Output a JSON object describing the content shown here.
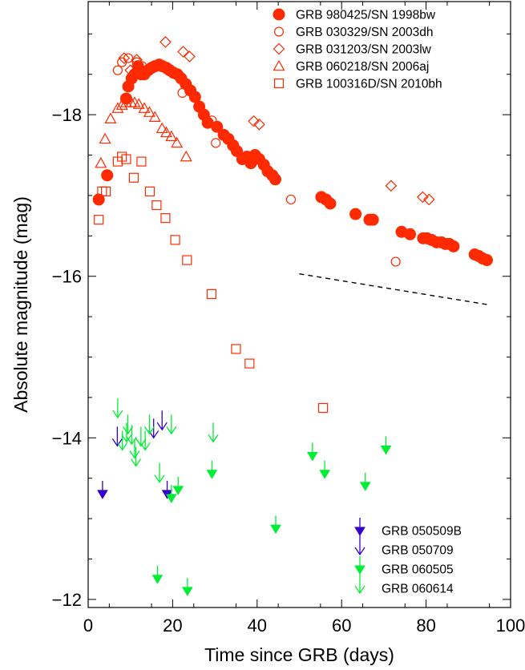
{
  "chart_data": {
    "type": "scatter",
    "xlabel": "Time since GRB (days)",
    "ylabel": "Absolute magnitude (mag)",
    "xlim": [
      0,
      100
    ],
    "ylim": [
      -11.9,
      -19.4
    ],
    "y_reversed": true,
    "x_ticks": [
      0,
      20,
      40,
      60,
      80,
      100
    ],
    "x_tick_labels": [
      "0",
      "20",
      "40",
      "60",
      "80",
      "100"
    ],
    "y_ticks": [
      -18,
      -16,
      -14,
      -12
    ],
    "y_tick_labels": [
      "−18",
      "−16",
      "−14",
      "−12"
    ],
    "legend_top_position": "top-right",
    "legend_bottom_position": "bottom-right",
    "series": [
      {
        "name": "GRB 980425/SN 1998bw",
        "marker": "circle-filled",
        "color": "#ff2a00",
        "points": [
          [
            2.5,
            -16.95
          ],
          [
            4.5,
            -17.25
          ],
          [
            9.0,
            -18.2
          ],
          [
            9.5,
            -18.35
          ],
          [
            10.3,
            -18.45
          ],
          [
            11.0,
            -18.5
          ],
          [
            11.8,
            -18.6
          ],
          [
            12.5,
            -18.5
          ],
          [
            13.3,
            -18.5
          ],
          [
            14.2,
            -18.55
          ],
          [
            15.0,
            -18.58
          ],
          [
            15.8,
            -18.6
          ],
          [
            16.8,
            -18.62
          ],
          [
            17.6,
            -18.6
          ],
          [
            18.5,
            -18.58
          ],
          [
            19.3,
            -18.55
          ],
          [
            20.2,
            -18.52
          ],
          [
            21.1,
            -18.5
          ],
          [
            22.0,
            -18.45
          ],
          [
            23.1,
            -18.38
          ],
          [
            24.2,
            -18.3
          ],
          [
            25.3,
            -18.22
          ],
          [
            26.3,
            -18.1
          ],
          [
            27.4,
            -18.0
          ],
          [
            28.3,
            -17.9
          ],
          [
            30.5,
            -17.85
          ],
          [
            32.1,
            -17.75
          ],
          [
            33.2,
            -17.7
          ],
          [
            34.3,
            -17.62
          ],
          [
            35.2,
            -17.55
          ],
          [
            36.5,
            -17.45
          ],
          [
            37.6,
            -17.48
          ],
          [
            38.5,
            -17.4
          ],
          [
            39.5,
            -17.5
          ],
          [
            40.5,
            -17.45
          ],
          [
            41.6,
            -17.38
          ],
          [
            42.5,
            -17.3
          ],
          [
            43.6,
            -17.25
          ],
          [
            44.3,
            -17.2
          ],
          [
            55.2,
            -16.98
          ],
          [
            56.3,
            -16.95
          ],
          [
            57.3,
            -16.9
          ],
          [
            63.3,
            -16.77
          ],
          [
            66.6,
            -16.7
          ],
          [
            67.4,
            -16.7
          ],
          [
            74.2,
            -16.55
          ],
          [
            76.2,
            -16.52
          ],
          [
            79.3,
            -16.47
          ],
          [
            80.2,
            -16.47
          ],
          [
            81.3,
            -16.45
          ],
          [
            82.5,
            -16.42
          ],
          [
            83.6,
            -16.42
          ],
          [
            84.6,
            -16.4
          ],
          [
            85.5,
            -16.4
          ],
          [
            86.5,
            -16.37
          ],
          [
            91.5,
            -16.27
          ],
          [
            92.5,
            -16.25
          ],
          [
            93.4,
            -16.22
          ],
          [
            94.4,
            -16.2
          ]
        ]
      },
      {
        "name": "GRB 030329/SN 2003dh",
        "marker": "circle-open",
        "color": "#ff2a00",
        "points": [
          [
            7.0,
            -18.55
          ],
          [
            8.0,
            -18.65
          ],
          [
            9.5,
            -18.7
          ],
          [
            11.5,
            -18.65
          ],
          [
            12.8,
            -18.6
          ],
          [
            22.3,
            -18.27
          ],
          [
            29.3,
            -17.93
          ],
          [
            30.2,
            -17.65
          ],
          [
            34.5,
            -17.63
          ],
          [
            48.0,
            -16.95
          ],
          [
            72.8,
            -16.18
          ]
        ]
      },
      {
        "name": "GRB 031203/SN 2003lw",
        "marker": "diamond-open",
        "color": "#ff2a00",
        "points": [
          [
            8.5,
            -18.7
          ],
          [
            10.0,
            -18.55
          ],
          [
            11.5,
            -18.68
          ],
          [
            18.3,
            -18.9
          ],
          [
            22.5,
            -18.78
          ],
          [
            24.0,
            -18.72
          ],
          [
            39.2,
            -17.92
          ],
          [
            40.5,
            -17.88
          ],
          [
            71.7,
            -17.12
          ],
          [
            79.2,
            -16.98
          ],
          [
            80.7,
            -16.95
          ]
        ]
      },
      {
        "name": "GRB 060218/SN 2006aj",
        "marker": "triangle-open",
        "color": "#ff2a00",
        "points": [
          [
            3.0,
            -17.4
          ],
          [
            4.0,
            -17.7
          ],
          [
            5.3,
            -17.95
          ],
          [
            7.0,
            -18.08
          ],
          [
            8.0,
            -18.12
          ],
          [
            9.0,
            -18.15
          ],
          [
            10.2,
            -18.15
          ],
          [
            11.0,
            -18.15
          ],
          [
            12.0,
            -18.13
          ],
          [
            13.3,
            -18.08
          ],
          [
            14.5,
            -18.03
          ],
          [
            15.8,
            -17.97
          ],
          [
            17.5,
            -17.83
          ],
          [
            18.5,
            -17.78
          ],
          [
            19.7,
            -17.73
          ],
          [
            21.0,
            -17.65
          ],
          [
            23.2,
            -17.48
          ]
        ]
      },
      {
        "name": "GRB 100316D/SN 2010bh",
        "marker": "square-open",
        "color": "#ff2a00",
        "points": [
          [
            2.5,
            -16.7
          ],
          [
            3.3,
            -17.05
          ],
          [
            4.2,
            -17.05
          ],
          [
            7.0,
            -17.42
          ],
          [
            8.0,
            -17.48
          ],
          [
            9.0,
            -17.45
          ],
          [
            10.8,
            -17.22
          ],
          [
            12.6,
            -17.42
          ],
          [
            14.6,
            -17.05
          ],
          [
            16.2,
            -16.88
          ],
          [
            18.3,
            -16.72
          ],
          [
            20.6,
            -16.45
          ],
          [
            23.4,
            -16.2
          ],
          [
            29.2,
            -15.78
          ],
          [
            35.0,
            -15.1
          ],
          [
            38.2,
            -14.92
          ],
          [
            55.6,
            -14.37
          ]
        ]
      },
      {
        "name": "GRB 050509B",
        "marker": "arrow-filled",
        "color": "#3300cc",
        "points": [
          [
            3.4,
            -13.25
          ],
          [
            18.7,
            -13.25
          ]
        ]
      },
      {
        "name": "GRB 050709",
        "marker": "arrow-open",
        "color": "#3300cc",
        "points": [
          [
            6.9,
            -13.9
          ],
          [
            15.5,
            -14.0
          ],
          [
            17.5,
            -14.1
          ]
        ]
      },
      {
        "name": "GRB 060505",
        "marker": "arrow-filled",
        "color": "#00ee33",
        "points": [
          [
            16.4,
            -12.2
          ],
          [
            19.7,
            -13.2
          ],
          [
            21.3,
            -13.3
          ],
          [
            23.5,
            -12.05
          ],
          [
            29.3,
            -13.5
          ],
          [
            44.4,
            -12.82
          ],
          [
            53.1,
            -13.72
          ],
          [
            56.0,
            -13.5
          ],
          [
            65.6,
            -13.35
          ],
          [
            70.5,
            -13.8
          ]
        ]
      },
      {
        "name": "GRB 060614",
        "marker": "arrow-open",
        "color": "#00ee33",
        "points": [
          [
            7.0,
            -14.25
          ],
          [
            8.1,
            -13.85
          ],
          [
            9.1,
            -13.95
          ],
          [
            9.4,
            -14.05
          ],
          [
            10.3,
            -13.92
          ],
          [
            11.0,
            -13.75
          ],
          [
            11.3,
            -13.65
          ],
          [
            12.5,
            -13.9
          ],
          [
            13.5,
            -13.85
          ],
          [
            14.5,
            -14.05
          ],
          [
            16.9,
            -13.45
          ],
          [
            19.7,
            -14.05
          ],
          [
            29.6,
            -13.95
          ]
        ]
      }
    ],
    "reference_line": {
      "style": "dashed",
      "points": [
        [
          50,
          -16.03
        ],
        [
          94.5,
          -15.65
        ]
      ]
    }
  }
}
